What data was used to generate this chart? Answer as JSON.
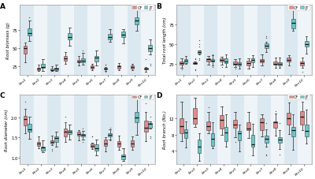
{
  "panels": [
    "A",
    "B",
    "C",
    "D"
  ],
  "xlabels": [
    "Env1",
    "Env2",
    "Env3",
    "Env4",
    "Env5",
    "Env6",
    "Env7",
    "Env8",
    "Env9",
    "Env10"
  ],
  "ylabels": [
    "Root biomass (g)",
    "Total root length (cm)",
    "Root diameter (cm)",
    "Root branch (No.)"
  ],
  "yticks_A": [
    25,
    50,
    75
  ],
  "yticks_B": [
    25,
    50,
    75
  ],
  "yticks_C": [
    1.0,
    1.5,
    2.0
  ],
  "yticks_D": [
    4,
    8,
    12
  ],
  "cf_color": "#E07070",
  "jt_color": "#4DBDBD",
  "bg_color": "#DCE8F0",
  "col_alt_color": "#EEF4F8",
  "panel_A": {
    "CF_boxes": [
      [
        38,
        44,
        50,
        55,
        62
      ],
      [
        17,
        19,
        22,
        24,
        27
      ],
      [
        17,
        19,
        21,
        23,
        26
      ],
      [
        26,
        30,
        36,
        41,
        46
      ],
      [
        26,
        28,
        32,
        36,
        40
      ],
      [
        19,
        21,
        24,
        27,
        30
      ],
      [
        17,
        20,
        23,
        26,
        29
      ],
      [
        19,
        21,
        24,
        27,
        30
      ],
      [
        19,
        21,
        24,
        27,
        30
      ],
      [
        17,
        19,
        21,
        23,
        26
      ]
    ],
    "JT_boxes": [
      [
        58,
        66,
        72,
        77,
        84
      ],
      [
        17,
        21,
        25,
        29,
        33
      ],
      [
        17,
        19,
        22,
        25,
        29
      ],
      [
        52,
        60,
        66,
        72,
        78
      ],
      [
        26,
        30,
        36,
        42,
        48
      ],
      [
        26,
        30,
        36,
        42,
        48
      ],
      [
        52,
        60,
        66,
        72,
        78
      ],
      [
        55,
        63,
        68,
        74,
        80
      ],
      [
        72,
        80,
        86,
        92,
        98
      ],
      [
        40,
        46,
        52,
        58,
        64
      ]
    ],
    "CF_outliers": [
      [
        35,
        33,
        30
      ],
      [],
      [],
      [],
      [],
      [],
      [],
      [],
      [],
      [
        35
      ]
    ],
    "JT_outliers": [
      [
        88,
        92
      ],
      [
        35
      ],
      [],
      [],
      [],
      [],
      [],
      [],
      [
        102,
        105
      ],
      [
        28,
        26
      ]
    ]
  },
  "panel_B": {
    "CF_boxes": [
      [
        17,
        21,
        25,
        29,
        33
      ],
      [
        17,
        21,
        25,
        29,
        33
      ],
      [
        21,
        25,
        29,
        33,
        37
      ],
      [
        21,
        25,
        29,
        33,
        37
      ],
      [
        17,
        21,
        25,
        29,
        33
      ],
      [
        17,
        21,
        25,
        29,
        33
      ],
      [
        21,
        25,
        29,
        33,
        37
      ],
      [
        17,
        21,
        25,
        29,
        33
      ],
      [
        21,
        25,
        29,
        33,
        37
      ],
      [
        17,
        21,
        25,
        29,
        33
      ]
    ],
    "JT_boxes": [
      [
        21,
        25,
        29,
        33,
        37
      ],
      [
        28,
        34,
        40,
        46,
        52
      ],
      [
        21,
        25,
        29,
        33,
        37
      ],
      [
        21,
        25,
        29,
        33,
        37
      ],
      [
        17,
        21,
        25,
        29,
        33
      ],
      [
        21,
        25,
        29,
        33,
        37
      ],
      [
        36,
        42,
        48,
        54,
        60
      ],
      [
        17,
        21,
        25,
        29,
        33
      ],
      [
        60,
        68,
        76,
        84,
        90
      ],
      [
        36,
        42,
        48,
        54,
        60
      ]
    ],
    "CF_outliers": [
      [],
      [],
      [],
      [],
      [],
      [],
      [],
      [],
      [],
      [
        15
      ]
    ],
    "JT_outliers": [
      [],
      [
        55
      ],
      [],
      [],
      [],
      [],
      [],
      [],
      [
        95
      ],
      []
    ]
  },
  "panel_C": {
    "CF_boxes": [
      [
        1.5,
        1.65,
        1.85,
        2.05,
        2.25
      ],
      [
        1.15,
        1.25,
        1.35,
        1.45,
        1.55
      ],
      [
        1.15,
        1.25,
        1.35,
        1.45,
        1.55
      ],
      [
        1.35,
        1.45,
        1.65,
        1.85,
        2.05
      ],
      [
        1.35,
        1.45,
        1.55,
        1.65,
        1.75
      ],
      [
        1.15,
        1.25,
        1.35,
        1.45,
        1.55
      ],
      [
        1.15,
        1.25,
        1.35,
        1.45,
        1.55
      ],
      [
        1.15,
        1.25,
        1.35,
        1.45,
        1.55
      ],
      [
        1.15,
        1.25,
        1.35,
        1.45,
        1.55
      ],
      [
        1.35,
        1.55,
        1.75,
        1.95,
        2.15
      ]
    ],
    "JT_boxes": [
      [
        1.45,
        1.6,
        1.75,
        1.9,
        2.05
      ],
      [
        1.05,
        1.15,
        1.25,
        1.35,
        1.45
      ],
      [
        1.25,
        1.35,
        1.45,
        1.55,
        1.65
      ],
      [
        1.45,
        1.55,
        1.65,
        1.75,
        1.85
      ],
      [
        1.35,
        1.45,
        1.55,
        1.65,
        1.75
      ],
      [
        1.05,
        1.15,
        1.25,
        1.35,
        1.45
      ],
      [
        1.35,
        1.45,
        1.55,
        1.65,
        1.75
      ],
      [
        0.85,
        0.95,
        1.05,
        1.15,
        1.25
      ],
      [
        1.55,
        1.75,
        1.95,
        2.15,
        2.35
      ],
      [
        1.45,
        1.6,
        1.75,
        1.9,
        2.05
      ]
    ],
    "CF_outliers": [
      [
        2.4
      ],
      [],
      [],
      [],
      [],
      [],
      [],
      [],
      [],
      [
        2.35
      ]
    ],
    "JT_outliers": [
      [],
      [],
      [],
      [],
      [],
      [],
      [],
      [],
      [
        2.5
      ],
      []
    ]
  },
  "panel_D": {
    "CF_boxes": [
      [
        6,
        8,
        10,
        12,
        14
      ],
      [
        8,
        10,
        12,
        14,
        16
      ],
      [
        7,
        9,
        11,
        13,
        15
      ],
      [
        7,
        9,
        11,
        13,
        15
      ],
      [
        6,
        8,
        10,
        12,
        14
      ],
      [
        7,
        9,
        11,
        13,
        15
      ],
      [
        6,
        8,
        10,
        12,
        14
      ],
      [
        7,
        9,
        11,
        13,
        15
      ],
      [
        8,
        10,
        12,
        14,
        16
      ],
      [
        8,
        10,
        12,
        14,
        16
      ]
    ],
    "JT_boxes": [
      [
        4,
        6,
        8,
        10,
        12
      ],
      [
        1,
        3,
        5,
        7,
        9
      ],
      [
        3,
        5,
        7,
        9,
        11
      ],
      [
        4,
        6,
        8,
        10,
        12
      ],
      [
        3,
        5,
        7,
        9,
        11
      ],
      [
        3,
        5,
        7,
        9,
        11
      ],
      [
        3,
        5,
        7,
        9,
        11
      ],
      [
        3,
        5,
        7,
        9,
        11
      ],
      [
        4,
        6,
        8,
        10,
        12
      ],
      [
        4,
        6,
        8,
        10,
        12
      ]
    ],
    "CF_outliers": [
      [
        15,
        16
      ],
      [
        16,
        17
      ],
      [],
      [],
      [],
      [],
      [],
      [],
      [],
      [
        16
      ]
    ],
    "JT_outliers": [
      [],
      [],
      [],
      [
        13
      ],
      [],
      [],
      [],
      [],
      [
        13
      ],
      [
        13,
        14
      ]
    ]
  }
}
